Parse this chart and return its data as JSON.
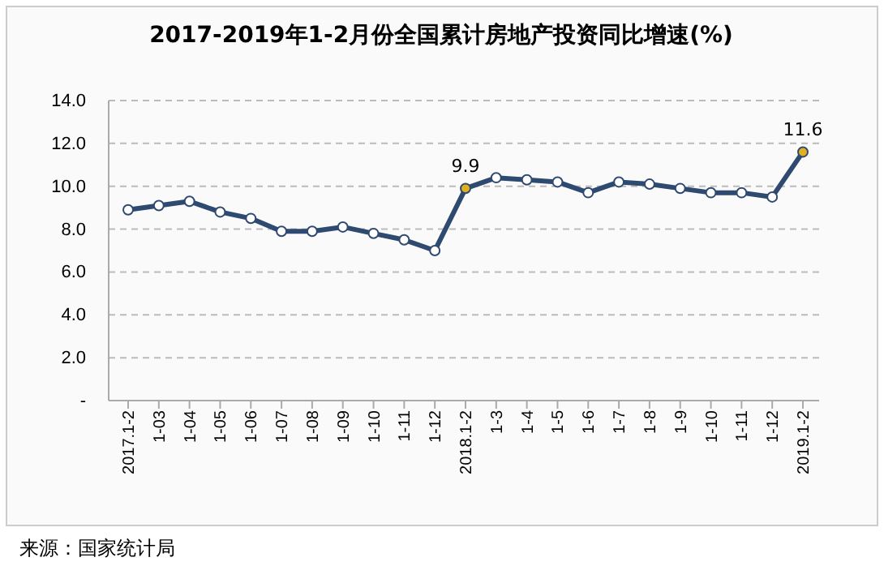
{
  "chart_data": {
    "type": "line",
    "title": "2017-2019年1-2月份全国累计房地产投资同比增速(%)",
    "categories": [
      "2017.1-2",
      "1-03",
      "1-04",
      "1-05",
      "1-06",
      "1-07",
      "1-08",
      "1-09",
      "1-10",
      "1-11",
      "1-12",
      "2018.1-2",
      "1-3",
      "1-4",
      "1-5",
      "1-6",
      "1-7",
      "1-8",
      "1-9",
      "1-10",
      "1-11",
      "1-12",
      "2019.1-2"
    ],
    "series": [
      {
        "color": "#2e4a70",
        "values": [
          8.9,
          9.1,
          9.3,
          8.8,
          8.5,
          7.9,
          7.9,
          8.1,
          7.8,
          7.5,
          7.0,
          9.9,
          10.4,
          10.3,
          10.2,
          9.7,
          10.2,
          10.1,
          9.9,
          9.7,
          9.7,
          9.5,
          11.6
        ],
        "colors": [
          "#ffffff",
          "#ffffff",
          "#ffffff",
          "#ffffff",
          "#ffffff",
          "#ffffff",
          "#ffffff",
          "#ffffff",
          "#ffffff",
          "#ffffff",
          "#ffffff",
          "#e0b020",
          "#ffffff",
          "#ffffff",
          "#ffffff",
          "#ffffff",
          "#ffffff",
          "#ffffff",
          "#ffffff",
          "#ffffff",
          "#ffffff",
          "#ffffff",
          "#e0b020"
        ],
        "value_labels": [
          null,
          null,
          null,
          null,
          null,
          null,
          null,
          null,
          null,
          null,
          null,
          "9.9",
          null,
          null,
          null,
          null,
          null,
          null,
          null,
          null,
          null,
          null,
          "11.6"
        ]
      }
    ],
    "ylim": [
      0,
      14
    ],
    "yticks": [
      {
        "value": 0,
        "label": "-"
      },
      {
        "value": 2,
        "label": "2.0"
      },
      {
        "value": 4,
        "label": "4.0"
      },
      {
        "value": 6,
        "label": "6.0"
      },
      {
        "value": 8,
        "label": "8.0"
      },
      {
        "value": 10,
        "label": "10.0"
      },
      {
        "value": 12,
        "label": "12.0"
      },
      {
        "value": 14,
        "label": "14.0"
      }
    ],
    "grid": "y",
    "marker": "circle",
    "line_style": "solid",
    "annotations": [
      "来源：国家统计局"
    ]
  }
}
